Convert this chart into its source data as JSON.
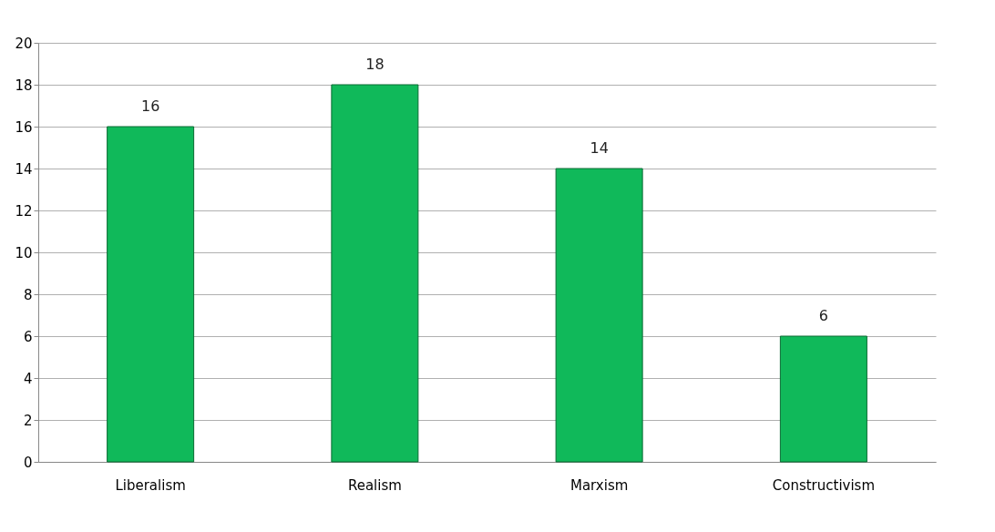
{
  "chart_data": {
    "type": "bar",
    "categories": [
      "Liberalism",
      "Realism",
      "Marxism",
      "Constructivism"
    ],
    "values": [
      16,
      18,
      14,
      6
    ],
    "color": "#10b95a",
    "ylim": [
      0,
      20
    ],
    "yticks": [
      0,
      2,
      4,
      6,
      8,
      10,
      12,
      14,
      16,
      18,
      20
    ],
    "grid": "y",
    "data_labels": true
  }
}
